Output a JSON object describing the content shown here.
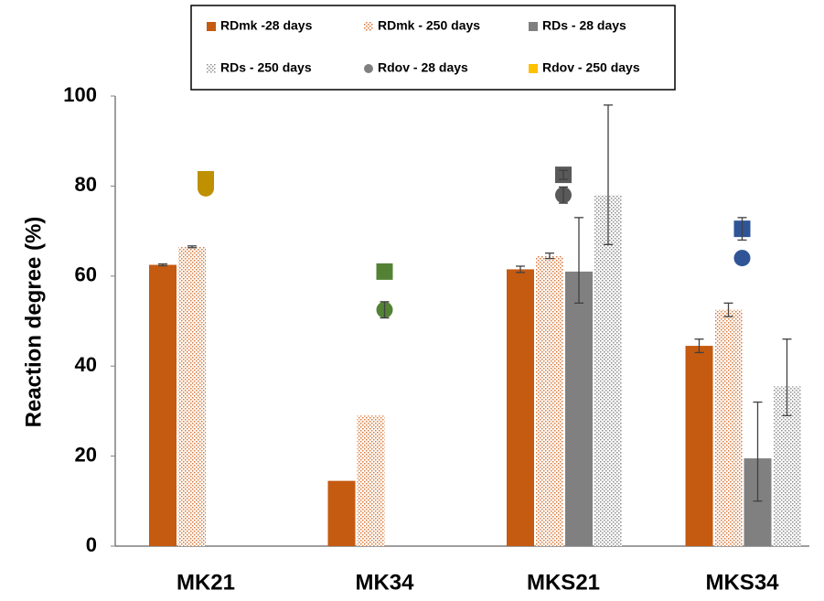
{
  "chart_data": {
    "type": "bar",
    "y_label": "Reaction degree (%)",
    "categories": [
      "MK21",
      "MK34",
      "MKS21",
      "MKS34"
    ],
    "ylim": [
      0,
      100
    ],
    "yticks": [
      0,
      20,
      40,
      60,
      80,
      100
    ],
    "series": [
      {
        "name": "RDmk -28 days",
        "marker": "bar",
        "pattern": "solid",
        "color": "#c55a11",
        "values": [
          62.5,
          14.5,
          61.5,
          44.5
        ],
        "error_low": [
          0.2,
          null,
          0.7,
          1.5
        ],
        "error_high": [
          0.2,
          null,
          0.7,
          1.5
        ]
      },
      {
        "name": "RDmk - 250 days",
        "marker": "bar",
        "pattern": "dots",
        "color": "#d9793a",
        "values": [
          66.5,
          29,
          64.5,
          52.5
        ],
        "error_low": [
          0.2,
          null,
          0.6,
          1.5
        ],
        "error_high": [
          0.2,
          null,
          0.6,
          1.5
        ]
      },
      {
        "name": "RDs - 28 days",
        "marker": "bar",
        "pattern": "solid",
        "color": "#808080",
        "values": [
          null,
          null,
          61,
          19.5
        ],
        "error_low": [
          null,
          null,
          7,
          9.5
        ],
        "error_high": [
          null,
          null,
          12,
          12.5
        ]
      },
      {
        "name": "RDs - 250 days",
        "marker": "bar",
        "pattern": "dots",
        "color": "#8c8c8c",
        "values": [
          null,
          null,
          78,
          35.5
        ],
        "error_low": [
          null,
          null,
          11,
          6.5
        ],
        "error_high": [
          null,
          null,
          20,
          10.5
        ]
      },
      {
        "name": "Rdov - 28 days",
        "marker": "circle",
        "color": "#808080",
        "colors": [
          "#bf9000",
          "#548235",
          "#595959",
          "#2f5597"
        ],
        "values": [
          79.5,
          52.5,
          78,
          64
        ],
        "error_low": [
          null,
          1.8,
          1.8,
          null
        ],
        "error_high": [
          null,
          1.8,
          1.8,
          null
        ]
      },
      {
        "name": "Rdov - 250 days",
        "marker": "square",
        "color": "#ffc000",
        "colors": [
          "#bf9000",
          "#548235",
          "#595959",
          "#2f5597"
        ],
        "values": [
          81.5,
          61,
          82.5,
          70.5
        ],
        "error_low": [
          null,
          null,
          1,
          2.5
        ],
        "error_high": [
          null,
          null,
          1,
          2.5
        ]
      }
    ]
  }
}
